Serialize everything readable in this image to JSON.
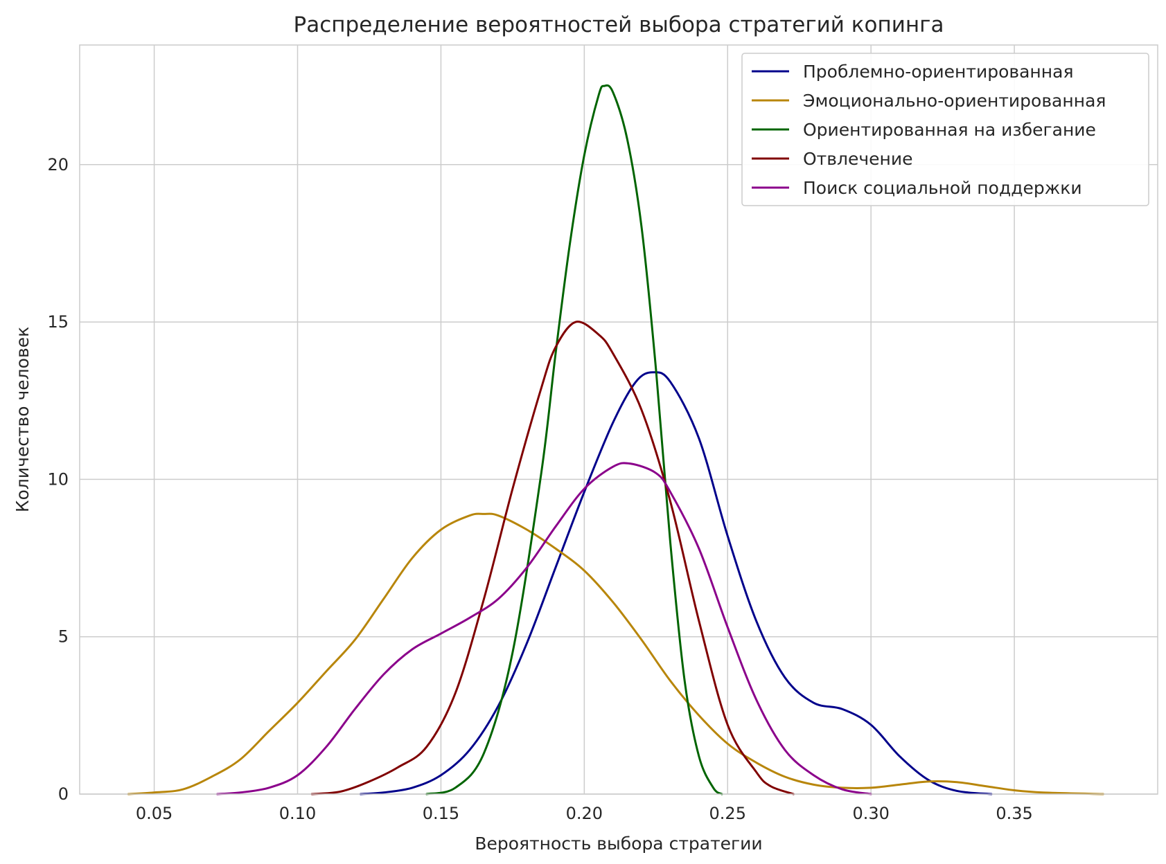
{
  "chart_data": {
    "type": "line",
    "title": "Распределение вероятностей выбора стратегий копинга",
    "xlabel": "Вероятность выбора стратегии",
    "ylabel": "Количество человек",
    "xlim": [
      0.024,
      0.4
    ],
    "ylim": [
      0,
      23.8
    ],
    "x_ticks": [
      "0.05",
      "0.10",
      "0.15",
      "0.20",
      "0.25",
      "0.30",
      "0.35"
    ],
    "x_tick_values": [
      0.05,
      0.1,
      0.15,
      0.2,
      0.25,
      0.3,
      0.35
    ],
    "y_ticks": [
      "0",
      "5",
      "10",
      "15",
      "20"
    ],
    "y_tick_values": [
      0,
      5,
      10,
      15,
      20
    ],
    "grid": true,
    "legend_position": "top-right",
    "series": [
      {
        "name": "Проблемно-ориентированная",
        "color": "#00008b",
        "points": [
          [
            0.122,
            0.0
          ],
          [
            0.13,
            0.05
          ],
          [
            0.14,
            0.2
          ],
          [
            0.15,
            0.6
          ],
          [
            0.16,
            1.4
          ],
          [
            0.17,
            2.8
          ],
          [
            0.18,
            4.8
          ],
          [
            0.19,
            7.2
          ],
          [
            0.2,
            9.6
          ],
          [
            0.21,
            11.8
          ],
          [
            0.218,
            13.1
          ],
          [
            0.224,
            13.4
          ],
          [
            0.23,
            13.1
          ],
          [
            0.24,
            11.3
          ],
          [
            0.25,
            8.2
          ],
          [
            0.26,
            5.5
          ],
          [
            0.27,
            3.7
          ],
          [
            0.28,
            2.9
          ],
          [
            0.29,
            2.7
          ],
          [
            0.3,
            2.2
          ],
          [
            0.31,
            1.2
          ],
          [
            0.32,
            0.45
          ],
          [
            0.33,
            0.1
          ],
          [
            0.342,
            0.0
          ]
        ]
      },
      {
        "name": "Эмоционально-ориентированная",
        "color": "#b8860b",
        "points": [
          [
            0.041,
            0.0
          ],
          [
            0.05,
            0.05
          ],
          [
            0.06,
            0.15
          ],
          [
            0.07,
            0.55
          ],
          [
            0.08,
            1.1
          ],
          [
            0.09,
            2.0
          ],
          [
            0.1,
            2.9
          ],
          [
            0.11,
            3.9
          ],
          [
            0.12,
            4.9
          ],
          [
            0.13,
            6.2
          ],
          [
            0.14,
            7.5
          ],
          [
            0.15,
            8.4
          ],
          [
            0.16,
            8.85
          ],
          [
            0.165,
            8.9
          ],
          [
            0.17,
            8.85
          ],
          [
            0.18,
            8.4
          ],
          [
            0.19,
            7.8
          ],
          [
            0.2,
            7.1
          ],
          [
            0.21,
            6.1
          ],
          [
            0.22,
            4.9
          ],
          [
            0.23,
            3.6
          ],
          [
            0.24,
            2.5
          ],
          [
            0.25,
            1.6
          ],
          [
            0.26,
            1.0
          ],
          [
            0.27,
            0.55
          ],
          [
            0.28,
            0.3
          ],
          [
            0.29,
            0.2
          ],
          [
            0.3,
            0.2
          ],
          [
            0.31,
            0.3
          ],
          [
            0.32,
            0.4
          ],
          [
            0.33,
            0.38
          ],
          [
            0.34,
            0.25
          ],
          [
            0.35,
            0.12
          ],
          [
            0.36,
            0.05
          ],
          [
            0.381,
            0.0
          ]
        ]
      },
      {
        "name": "Ориентированная на избегание",
        "color": "#006400",
        "points": [
          [
            0.145,
            0.0
          ],
          [
            0.155,
            0.2
          ],
          [
            0.165,
            1.3
          ],
          [
            0.175,
            4.5
          ],
          [
            0.185,
            10.2
          ],
          [
            0.19,
            14.0
          ],
          [
            0.195,
            17.5
          ],
          [
            0.2,
            20.3
          ],
          [
            0.205,
            22.2
          ],
          [
            0.207,
            22.5
          ],
          [
            0.21,
            22.3
          ],
          [
            0.215,
            20.8
          ],
          [
            0.22,
            18.0
          ],
          [
            0.225,
            13.5
          ],
          [
            0.23,
            8.0
          ],
          [
            0.235,
            3.6
          ],
          [
            0.24,
            1.2
          ],
          [
            0.245,
            0.2
          ],
          [
            0.248,
            0.0
          ]
        ]
      },
      {
        "name": "Отвлечение",
        "color": "#800000",
        "points": [
          [
            0.105,
            0.0
          ],
          [
            0.115,
            0.08
          ],
          [
            0.125,
            0.4
          ],
          [
            0.135,
            0.85
          ],
          [
            0.145,
            1.5
          ],
          [
            0.155,
            3.2
          ],
          [
            0.165,
            6.2
          ],
          [
            0.175,
            9.7
          ],
          [
            0.185,
            12.9
          ],
          [
            0.19,
            14.2
          ],
          [
            0.197,
            15.0
          ],
          [
            0.205,
            14.6
          ],
          [
            0.21,
            14.0
          ],
          [
            0.22,
            12.2
          ],
          [
            0.23,
            9.3
          ],
          [
            0.24,
            5.5
          ],
          [
            0.25,
            2.2
          ],
          [
            0.26,
            0.7
          ],
          [
            0.265,
            0.25
          ],
          [
            0.273,
            0.0
          ]
        ]
      },
      {
        "name": "Поиск социальной поддержки",
        "color": "#8b008b",
        "points": [
          [
            0.072,
            0.0
          ],
          [
            0.08,
            0.05
          ],
          [
            0.09,
            0.2
          ],
          [
            0.1,
            0.6
          ],
          [
            0.11,
            1.5
          ],
          [
            0.12,
            2.7
          ],
          [
            0.13,
            3.8
          ],
          [
            0.14,
            4.6
          ],
          [
            0.15,
            5.1
          ],
          [
            0.16,
            5.6
          ],
          [
            0.17,
            6.2
          ],
          [
            0.18,
            7.2
          ],
          [
            0.19,
            8.5
          ],
          [
            0.2,
            9.7
          ],
          [
            0.21,
            10.4
          ],
          [
            0.216,
            10.5
          ],
          [
            0.225,
            10.2
          ],
          [
            0.23,
            9.6
          ],
          [
            0.24,
            7.8
          ],
          [
            0.25,
            5.3
          ],
          [
            0.26,
            3.0
          ],
          [
            0.27,
            1.4
          ],
          [
            0.28,
            0.6
          ],
          [
            0.29,
            0.15
          ],
          [
            0.3,
            0.0
          ]
        ]
      }
    ]
  }
}
